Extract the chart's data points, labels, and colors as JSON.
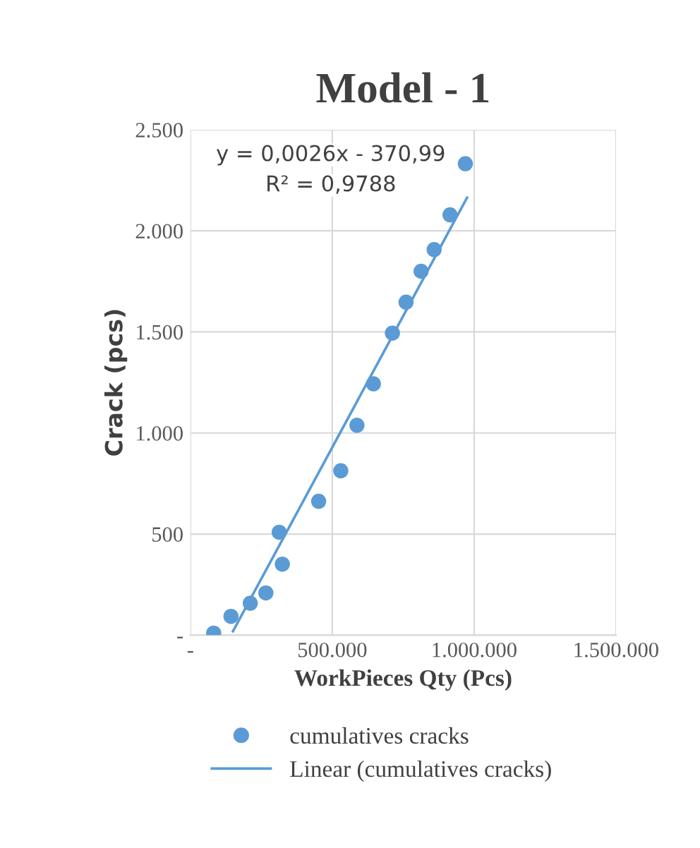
{
  "chart_data": {
    "type": "scatter",
    "title": "Model - 1",
    "xlabel": "WorkPieces Qty (Pcs)",
    "ylabel": "Crack (pcs)",
    "annotations": [
      "y = 0,0026x - 370,99",
      "R² = 0,9788"
    ],
    "series": [
      {
        "name": "cumulatives cracks",
        "color": "#5b9bd5",
        "marker": "circle",
        "x": [
          82000,
          143000,
          211000,
          266000,
          313000,
          324000,
          452000,
          530000,
          587000,
          645000,
          712000,
          760000,
          813000,
          859000,
          915000,
          969000
        ],
        "values": [
          10,
          93,
          158,
          209,
          509,
          351,
          662,
          813,
          1038,
          1243,
          1494,
          1647,
          1800,
          1907,
          2079,
          2332
        ]
      },
      {
        "name": "Linear (cumulatives cracks)",
        "type": "line",
        "color": "#5b9bd5",
        "marker": "none",
        "line_style": "solid",
        "x": [
          150000,
          975000
        ],
        "values": [
          19,
          2164
        ]
      }
    ],
    "xlim": [
      0,
      1500000
    ],
    "ylim": [
      0,
      2500
    ],
    "xticks": [
      {
        "value": 0,
        "label": "-"
      },
      {
        "value": 500000,
        "label": "500.000"
      },
      {
        "value": 1000000,
        "label": "1.000.000"
      },
      {
        "value": 1500000,
        "label": "1.500.000"
      }
    ],
    "yticks": [
      {
        "value": 0,
        "label": "-"
      },
      {
        "value": 500,
        "label": "500"
      },
      {
        "value": 1000,
        "label": "1.000"
      },
      {
        "value": 1500,
        "label": "1.500"
      },
      {
        "value": 2000,
        "label": "2.000"
      },
      {
        "value": 2500,
        "label": "2.500"
      }
    ],
    "grid": true,
    "legend": "bottom"
  }
}
